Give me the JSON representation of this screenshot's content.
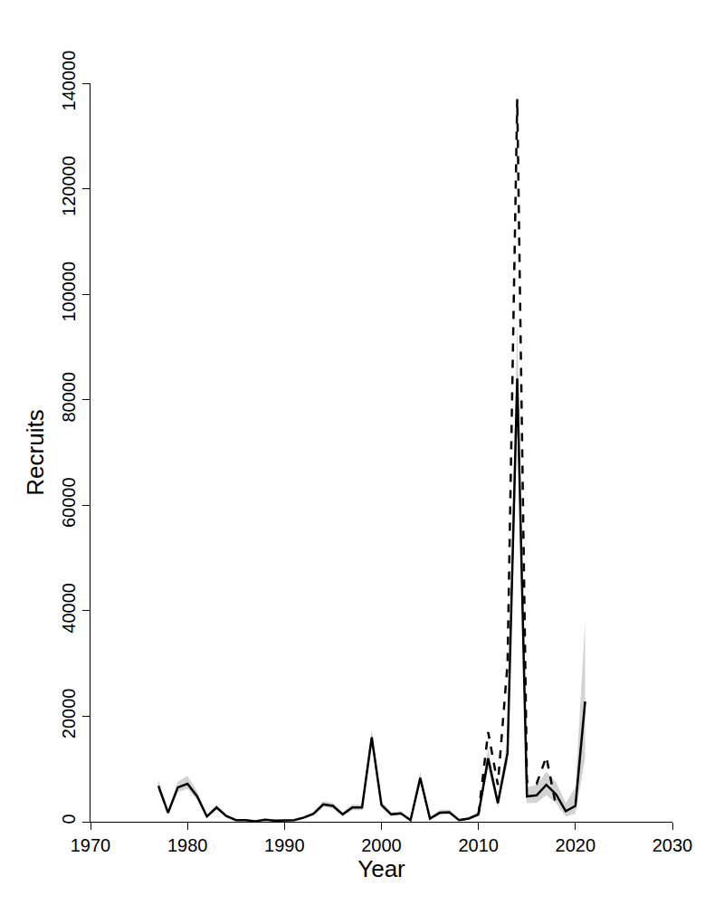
{
  "chart_data": {
    "type": "line",
    "x_label": "Year",
    "y_label": "Recruits",
    "xlim": [
      1970,
      2030
    ],
    "xticks": [
      1970,
      1980,
      1990,
      2000,
      2010,
      2020,
      2030
    ],
    "ylim": [
      0,
      140000
    ],
    "yticks": [
      0,
      20000,
      40000,
      60000,
      80000,
      100000,
      120000,
      140000
    ],
    "grid": false,
    "series": [
      {
        "color": "#000000",
        "line_style": "solid",
        "x": [
          1977,
          1978,
          1979,
          1980,
          1981,
          1982,
          1983,
          1984,
          1985,
          1986,
          1987,
          1988,
          1989,
          1990,
          1991,
          1992,
          1993,
          1994,
          1995,
          1996,
          1997,
          1998,
          1999,
          2000,
          2001,
          2002,
          2003,
          2004,
          2005,
          2006,
          2007,
          2008,
          2009,
          2010,
          2011,
          2012,
          2013,
          2014,
          2015,
          2016,
          2017,
          2018,
          2019,
          2020,
          2021
        ],
        "values": [
          6800,
          1700,
          6500,
          7200,
          4800,
          1000,
          2700,
          1100,
          300,
          300,
          100,
          400,
          200,
          200,
          300,
          800,
          1500,
          3300,
          3000,
          1400,
          2700,
          2700,
          16000,
          3200,
          1400,
          1600,
          300,
          8300,
          600,
          1700,
          1800,
          300,
          600,
          1400,
          12000,
          3500,
          13000,
          84000,
          4800,
          5000,
          7000,
          5200,
          2000,
          3000,
          22800
        ],
        "lower": [
          5800,
          1400,
          5600,
          6200,
          4100,
          800,
          2300,
          900,
          200,
          200,
          50,
          300,
          150,
          150,
          200,
          600,
          1200,
          2800,
          2500,
          1100,
          2200,
          2200,
          14500,
          2700,
          1100,
          1300,
          200,
          7200,
          400,
          1300,
          1400,
          200,
          400,
          1000,
          10000,
          2700,
          11000,
          75000,
          3500,
          3600,
          5000,
          3500,
          1000,
          1500,
          12000
        ],
        "upper": [
          8000,
          2100,
          7600,
          8700,
          5700,
          1300,
          3200,
          1400,
          400,
          400,
          200,
          600,
          300,
          300,
          400,
          1000,
          1900,
          3900,
          3600,
          1800,
          3300,
          3300,
          17500,
          3800,
          1800,
          2000,
          500,
          9500,
          900,
          2200,
          2300,
          500,
          900,
          1900,
          14000,
          4500,
          15500,
          95000,
          6500,
          7000,
          9500,
          7500,
          3500,
          6500,
          38000
        ]
      },
      {
        "color": "#000000",
        "line_style": "dashed",
        "x": [
          2010,
          2011,
          2012,
          2013,
          2014,
          2015,
          2016,
          2017,
          2018
        ],
        "values": [
          1400,
          17000,
          7000,
          30000,
          137000,
          7600,
          7200,
          12300,
          3000
        ]
      }
    ]
  }
}
